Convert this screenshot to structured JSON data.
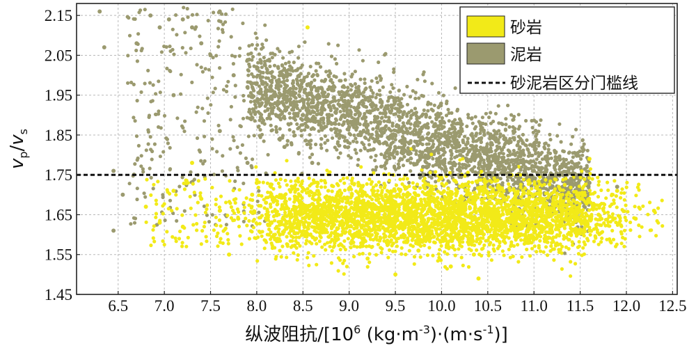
{
  "chart_data": {
    "type": "scatter",
    "xlabel_main": "纵波阻抗/[10",
    "xlabel_sup1": "6",
    "xlabel_mid1": " (kg·m",
    "xlabel_sup2": "-3",
    "xlabel_mid2": ")·(m·s",
    "xlabel_sup3": "-1",
    "xlabel_end": ")]",
    "ylabel_v1": "v",
    "ylabel_sub1": "p",
    "ylabel_slash": "/",
    "ylabel_v2": "v",
    "ylabel_sub2": "s",
    "xlim": [
      6.05,
      12.55
    ],
    "ylim": [
      1.45,
      2.18
    ],
    "x_ticks": [
      6.5,
      7.0,
      7.5,
      8.0,
      8.5,
      9.0,
      9.5,
      10.0,
      10.5,
      11.0,
      11.5,
      12.0,
      12.5
    ],
    "x_tick_labels": [
      "6.5",
      "7.0",
      "7.5",
      "8.0",
      "8.5",
      "9.0",
      "9.5",
      "10.0",
      "10.5",
      "11.0",
      "11.5",
      "12.0",
      "12.5"
    ],
    "y_ticks": [
      1.45,
      1.55,
      1.65,
      1.75,
      1.85,
      1.95,
      2.05,
      2.15
    ],
    "y_tick_labels": [
      "1.45",
      "1.55",
      "1.65",
      "1.75",
      "1.85",
      "1.95",
      "2.05",
      "2.15"
    ],
    "grid": true,
    "legend_position": "top-right",
    "threshold_y": 1.75,
    "legend": [
      {
        "label": "砂岩",
        "kind": "patch",
        "color": "#f2ea18"
      },
      {
        "label": "泥岩",
        "kind": "patch",
        "color": "#9b9a6f"
      },
      {
        "label": "砂泥岩区分门槛线",
        "kind": "dashed-line",
        "color": "#111111"
      }
    ],
    "series": [
      {
        "name": "泥岩",
        "color": "#9b9a6f",
        "shape": "point cloud decreasing from about (6.5, 2.15) to about (11.5, 1.72); dense core near x 9.0–10.5, y 1.75–1.90",
        "points": [
          [
            6.3,
            2.16
          ],
          [
            6.35,
            2.07
          ],
          [
            6.45,
            1.76
          ],
          [
            6.45,
            1.61
          ],
          [
            6.55,
            1.7
          ],
          [
            6.7,
            2.08
          ],
          [
            6.85,
            2.15
          ],
          [
            6.95,
            2.12
          ],
          [
            7.05,
            2.14
          ],
          [
            7.1,
            1.95
          ],
          [
            7.2,
            2.14
          ],
          [
            7.3,
            2.12
          ],
          [
            7.4,
            2.08
          ],
          [
            7.5,
            2.05
          ],
          [
            7.6,
            2.16
          ],
          [
            7.75,
            2.0
          ],
          [
            7.9,
            1.97
          ],
          [
            8.0,
            1.98
          ],
          [
            8.1,
            1.95
          ],
          [
            8.2,
            1.93
          ],
          [
            8.3,
            1.94
          ],
          [
            8.4,
            1.92
          ],
          [
            8.5,
            1.9
          ],
          [
            8.6,
            1.92
          ],
          [
            8.7,
            1.89
          ],
          [
            8.8,
            1.88
          ],
          [
            8.9,
            1.86
          ],
          [
            9.0,
            1.87
          ],
          [
            9.1,
            1.85
          ],
          [
            9.2,
            1.86
          ],
          [
            9.3,
            1.84
          ],
          [
            9.4,
            1.83
          ],
          [
            9.5,
            1.85
          ],
          [
            9.6,
            1.84
          ],
          [
            9.7,
            1.82
          ],
          [
            9.8,
            1.84
          ],
          [
            9.9,
            1.82
          ],
          [
            10.0,
            1.83
          ],
          [
            10.1,
            1.81
          ],
          [
            10.2,
            1.8
          ],
          [
            10.3,
            1.81
          ],
          [
            10.4,
            1.8
          ],
          [
            10.5,
            1.79
          ],
          [
            10.6,
            1.78
          ],
          [
            10.7,
            1.78
          ],
          [
            10.8,
            1.77
          ],
          [
            10.9,
            1.76
          ],
          [
            11.0,
            1.76
          ],
          [
            11.2,
            1.75
          ],
          [
            11.4,
            1.74
          ],
          [
            11.6,
            1.73
          ],
          [
            11.9,
            1.72
          ],
          [
            8.3,
            1.82
          ],
          [
            8.6,
            1.78
          ],
          [
            9.0,
            1.9
          ],
          [
            9.4,
            1.78
          ],
          [
            9.8,
            1.77
          ],
          [
            10.2,
            1.76
          ],
          [
            7.6,
            1.86
          ],
          [
            7.9,
            1.78
          ]
        ]
      },
      {
        "name": "砂岩",
        "color": "#f2ea18",
        "shape": "broad band between about y 1.53 and 1.75 across x 6.8–12.4, densest near x 8.7–10.8, y 1.58–1.72",
        "points": [
          [
            6.8,
            1.67
          ],
          [
            6.95,
            1.63
          ],
          [
            7.1,
            1.71
          ],
          [
            7.2,
            1.62
          ],
          [
            7.4,
            1.69
          ],
          [
            7.6,
            1.66
          ],
          [
            7.8,
            1.64
          ],
          [
            7.95,
            1.7
          ],
          [
            8.1,
            1.68
          ],
          [
            8.25,
            1.6
          ],
          [
            8.4,
            1.72
          ],
          [
            8.55,
            1.65
          ],
          [
            8.7,
            1.62
          ],
          [
            8.85,
            1.69
          ],
          [
            9.0,
            1.66
          ],
          [
            9.15,
            1.58
          ],
          [
            9.3,
            1.7
          ],
          [
            9.45,
            1.63
          ],
          [
            9.6,
            1.67
          ],
          [
            9.75,
            1.56
          ],
          [
            9.9,
            1.64
          ],
          [
            10.05,
            1.6
          ],
          [
            10.2,
            1.68
          ],
          [
            10.35,
            1.55
          ],
          [
            10.5,
            1.66
          ],
          [
            10.65,
            1.62
          ],
          [
            10.8,
            1.7
          ],
          [
            10.95,
            1.58
          ],
          [
            11.1,
            1.67
          ],
          [
            11.3,
            1.63
          ],
          [
            11.5,
            1.69
          ],
          [
            11.7,
            1.65
          ],
          [
            11.9,
            1.71
          ],
          [
            12.1,
            1.64
          ],
          [
            12.3,
            1.66
          ],
          [
            8.55,
            2.12
          ],
          [
            7.7,
            1.55
          ],
          [
            9.5,
            1.5
          ],
          [
            10.1,
            1.52
          ],
          [
            10.4,
            1.49
          ],
          [
            11.6,
            1.79
          ],
          [
            7.3,
            1.78
          ],
          [
            9.2,
            1.54
          ],
          [
            8.0,
            1.73
          ],
          [
            11.4,
            1.6
          ]
        ]
      }
    ]
  }
}
